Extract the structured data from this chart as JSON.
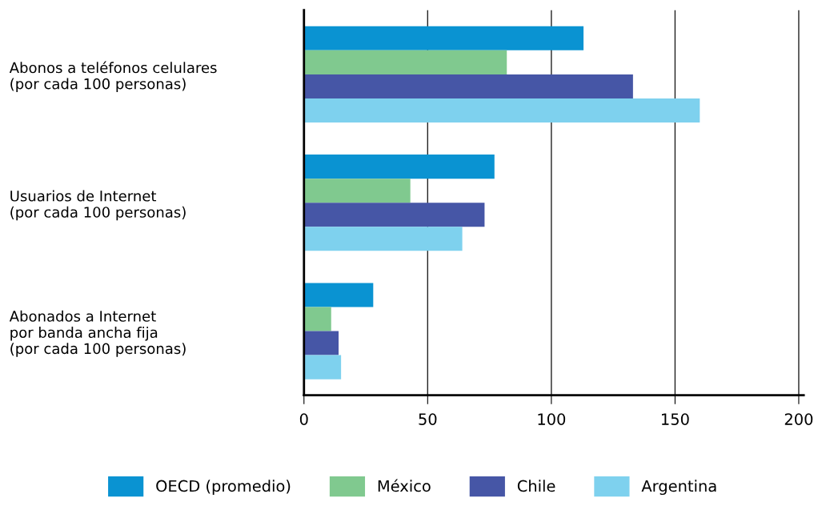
{
  "chart_data": {
    "type": "bar",
    "orientation": "horizontal",
    "categories": [
      "Abonos a teléfonos celulares\n(por cada 100 personas)",
      "Usuarios de Internet\n(por cada 100 personas)",
      "Abonados a Internet\npor banda ancha fija\n(por cada 100 personas)"
    ],
    "series": [
      {
        "name": "OECD (promedio)",
        "color": "#0a93d2",
        "values": [
          113,
          77,
          28
        ]
      },
      {
        "name": "México",
        "color": "#80c98f",
        "values": [
          82,
          43,
          11
        ]
      },
      {
        "name": "Chile",
        "color": "#4656a6",
        "values": [
          133,
          73,
          14
        ]
      },
      {
        "name": "Argentina",
        "color": "#7ed1ee",
        "values": [
          160,
          64,
          15
        ]
      }
    ],
    "xlim": [
      0,
      202
    ],
    "xticks": [
      0,
      50,
      100,
      150,
      200
    ],
    "grid": "x",
    "legend": "bottom"
  }
}
